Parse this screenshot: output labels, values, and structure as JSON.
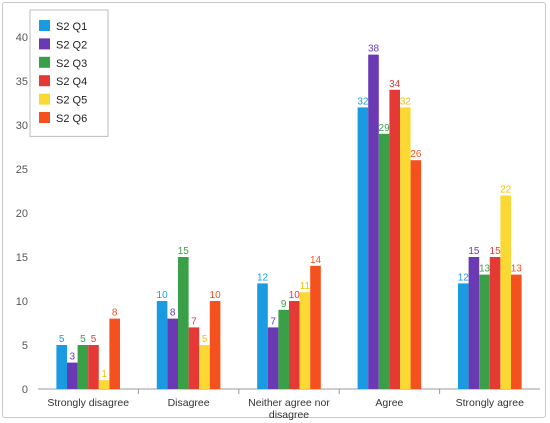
{
  "chart_data": {
    "type": "bar",
    "categories": [
      "Strongly disagree",
      "Disagree",
      "Neither agree nor disagree",
      "Agree",
      "Strongly agree"
    ],
    "series": [
      {
        "name": "S2 Q1",
        "color": "#1a9ae0",
        "values": [
          5,
          10,
          12,
          32,
          12
        ]
      },
      {
        "name": "S2 Q2",
        "color": "#6a3ab4",
        "values": [
          3,
          8,
          7,
          38,
          15
        ]
      },
      {
        "name": "S2 Q3",
        "color": "#3aa048",
        "values": [
          5,
          15,
          9,
          29,
          13
        ]
      },
      {
        "name": "S2 Q4",
        "color": "#e53935",
        "values": [
          5,
          7,
          10,
          34,
          15
        ]
      },
      {
        "name": "S2 Q5",
        "color": "#fcd835",
        "values": [
          1,
          5,
          11,
          32,
          22
        ]
      },
      {
        "name": "S2 Q6",
        "color": "#f4511e",
        "values": [
          8,
          10,
          14,
          26,
          13
        ]
      }
    ],
    "ylim": [
      0,
      40
    ],
    "yticks": [
      0,
      5,
      10,
      15,
      20,
      25,
      30,
      35,
      40
    ],
    "grid": false,
    "legend": "top-left",
    "title": "",
    "xlabel": "",
    "ylabel": ""
  }
}
